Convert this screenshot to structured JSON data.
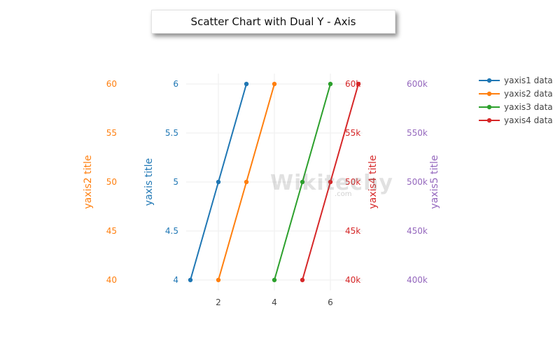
{
  "chart_data": {
    "type": "scatter",
    "title": "Scatter Chart with Dual Y - Axis",
    "x_ticks": [
      2,
      4,
      6
    ],
    "series": [
      {
        "name": "yaxis1 data",
        "axis": "yaxis",
        "color": "#1f77b4",
        "x": [
          1,
          2,
          3
        ],
        "y": [
          4,
          5,
          6
        ]
      },
      {
        "name": "yaxis2 data",
        "axis": "yaxis2",
        "color": "#ff7f0e",
        "x": [
          2,
          3,
          4
        ],
        "y": [
          40,
          50,
          60
        ]
      },
      {
        "name": "yaxis3 data",
        "axis": "yaxis4",
        "color": "#2ca02c",
        "x": [
          4,
          5,
          6
        ],
        "y": [
          40000,
          50000,
          60000
        ]
      },
      {
        "name": "yaxis4 data",
        "axis": "yaxis4",
        "color": "#d62728",
        "x": [
          5,
          6,
          7
        ],
        "y": [
          40000,
          50000,
          60000
        ]
      }
    ],
    "axes": [
      {
        "id": "yaxis2",
        "title": "yaxis2 title",
        "color": "#ff7f0e",
        "range": [
          40,
          60
        ],
        "ticks": [
          40,
          45,
          50,
          55,
          60
        ],
        "tick_labels": [
          "40",
          "45",
          "50",
          "55",
          "60"
        ]
      },
      {
        "id": "yaxis",
        "title": "yaxis title",
        "color": "#1f77b4",
        "range": [
          4,
          6
        ],
        "ticks": [
          4,
          4.5,
          5,
          5.5,
          6
        ],
        "tick_labels": [
          "4",
          "4.5",
          "5",
          "5.5",
          "6"
        ]
      },
      {
        "id": "yaxis4",
        "title": "yaxis4 title",
        "color": "#d62728",
        "range": [
          40000,
          60000
        ],
        "ticks": [
          40000,
          45000,
          50000,
          55000,
          60000
        ],
        "tick_labels": [
          "40k",
          "45k",
          "50k",
          "55k",
          "60k"
        ]
      },
      {
        "id": "yaxis5",
        "title": "yaxis5 title",
        "color": "#9467bd",
        "range": [
          400000,
          600000
        ],
        "ticks": [
          400000,
          450000,
          500000,
          550000,
          600000
        ],
        "tick_labels": [
          "400k",
          "450k",
          "500k",
          "550k",
          "600k"
        ]
      }
    ],
    "legend_position": "top-right",
    "grid": true
  },
  "watermark": {
    "text": "Wikitechy",
    "sub": ".com"
  }
}
